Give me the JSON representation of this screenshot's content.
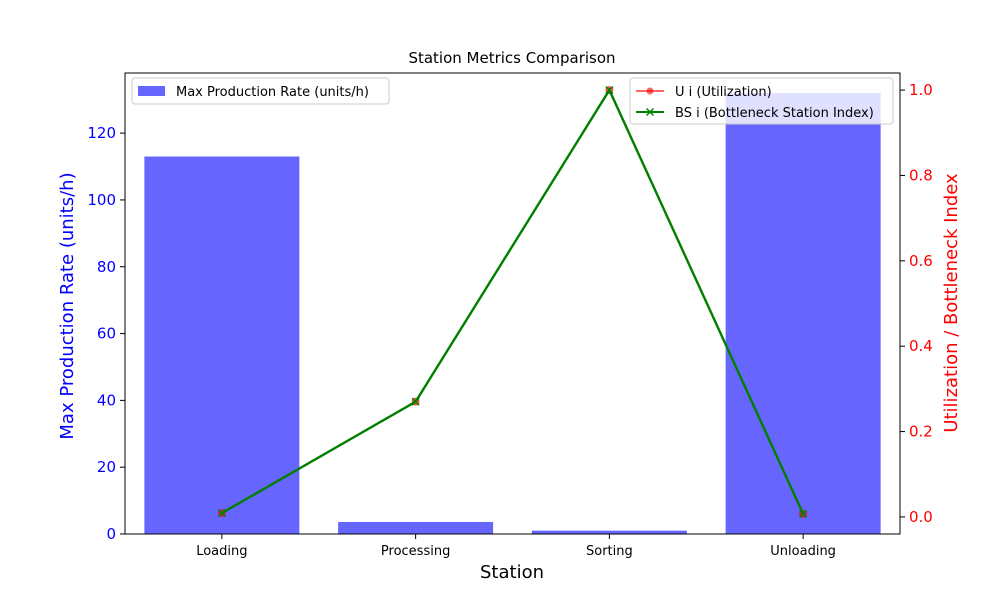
{
  "chart_data": {
    "type": "bar",
    "title": "Station Metrics Comparison",
    "xlabel": "Station",
    "ylabel": "Max Production Rate (units/h)",
    "y2label": "Utilization / Bottleneck Index",
    "categories": [
      "Loading",
      "Processing",
      "Sorting",
      "Unloading"
    ],
    "ylim": [
      0,
      138
    ],
    "y2lim": [
      -0.04,
      1.04
    ],
    "yticks": [
      0,
      20,
      40,
      60,
      80,
      100,
      120
    ],
    "y2ticks": [
      0.0,
      0.2,
      0.4,
      0.6,
      0.8,
      1.0
    ],
    "grid": false,
    "series": [
      {
        "name": "Max Production Rate (units/h)",
        "kind": "bar",
        "axis": "left",
        "color": "#6666ff",
        "values": [
          113,
          3.6,
          1,
          132
        ]
      },
      {
        "name": "U i (Utilization)",
        "kind": "line",
        "axis": "right",
        "marker": "circle",
        "color": "#ff0000",
        "values": [
          0.009,
          0.27,
          1.0,
          0.007
        ]
      },
      {
        "name": "BS i (Bottleneck Station Index)",
        "kind": "line",
        "axis": "right",
        "marker": "x",
        "color": "#008000",
        "values": [
          0.009,
          0.27,
          1.0,
          0.007
        ]
      }
    ],
    "legend_left": "upper-left",
    "legend_right": "upper-right"
  },
  "colors": {
    "left_axis": "#0000ff",
    "right_axis": "#ff0000"
  }
}
